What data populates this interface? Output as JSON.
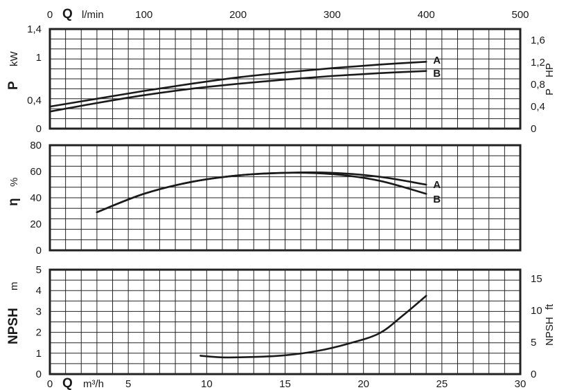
{
  "top_axis": {
    "q_symbol": "Q",
    "unit": "l/min",
    "ticks": [
      "0",
      "100",
      "200",
      "300",
      "400",
      "500"
    ]
  },
  "bottom_axis": {
    "q_symbol": "Q",
    "unit": "m³/h",
    "ticks": [
      "0",
      "5",
      "10",
      "15",
      "20",
      "25",
      "30"
    ]
  },
  "chart_data": [
    {
      "type": "line",
      "panel": "power",
      "ylabel": "P",
      "yunit": "kW",
      "y2label": "P",
      "y2unit": "HP",
      "xlim": [
        0,
        30
      ],
      "ylim": [
        0,
        1.4
      ],
      "y_ticks": [
        "0",
        "0,4",
        "1",
        "1,4"
      ],
      "y_tick_values": [
        0,
        0.4,
        1,
        1.4
      ],
      "y2_ticks": [
        "0",
        "0,4",
        "0,8",
        "1,2",
        "1,6"
      ],
      "y2_tick_values": [
        0,
        0.4,
        0.8,
        1.2,
        1.6
      ],
      "grid": true,
      "series": [
        {
          "name": "A",
          "x": [
            0,
            3,
            6,
            9,
            12,
            15,
            18,
            21,
            24
          ],
          "y": [
            0.31,
            0.42,
            0.53,
            0.63,
            0.72,
            0.79,
            0.85,
            0.9,
            0.94
          ]
        },
        {
          "name": "B",
          "x": [
            0,
            3,
            6,
            9,
            12,
            15,
            18,
            21,
            24
          ],
          "y": [
            0.24,
            0.36,
            0.47,
            0.56,
            0.63,
            0.69,
            0.74,
            0.78,
            0.81
          ]
        }
      ]
    },
    {
      "type": "line",
      "panel": "efficiency",
      "ylabel": "η",
      "yunit": "%",
      "xlim": [
        0,
        30
      ],
      "ylim": [
        0,
        80
      ],
      "y_ticks": [
        "0",
        "20",
        "40",
        "60",
        "80"
      ],
      "y_tick_values": [
        0,
        20,
        40,
        60,
        80
      ],
      "grid": true,
      "series": [
        {
          "name": "A",
          "x": [
            3,
            6,
            9,
            12,
            15,
            18,
            21,
            24
          ],
          "y": [
            29,
            43,
            52,
            57,
            59,
            59,
            56,
            50
          ]
        },
        {
          "name": "B",
          "x": [
            3,
            6,
            9,
            12,
            15,
            18,
            21,
            24
          ],
          "y": [
            29,
            43,
            52,
            57,
            59,
            58,
            53,
            43
          ]
        }
      ]
    },
    {
      "type": "line",
      "panel": "npsh",
      "ylabel": "NPSH",
      "yunit": "m",
      "y2label": "NPSH",
      "y2unit": "ft",
      "xlim": [
        0,
        30
      ],
      "ylim": [
        0,
        5
      ],
      "y_ticks": [
        "0",
        "1",
        "2",
        "3",
        "4",
        "5"
      ],
      "y_tick_values": [
        0,
        1,
        2,
        3,
        4,
        5
      ],
      "y2_ticks": [
        "0",
        "5",
        "10",
        "15"
      ],
      "y2_tick_values": [
        0,
        5,
        10,
        15
      ],
      "grid": true,
      "series": [
        {
          "x": [
            9.6,
            11,
            13,
            15,
            17,
            19,
            21,
            22.5,
            24
          ],
          "y": [
            0.88,
            0.8,
            0.82,
            0.9,
            1.1,
            1.45,
            1.95,
            2.8,
            3.75
          ]
        }
      ]
    }
  ]
}
